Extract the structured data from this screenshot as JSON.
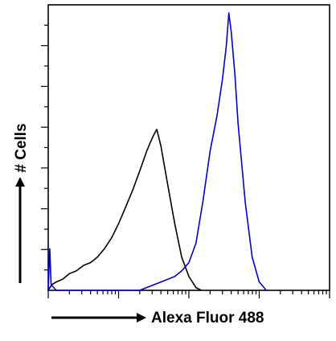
{
  "chart_data": {
    "type": "line",
    "title": "",
    "xlabel": "Alexa Fluor 488",
    "ylabel": "# Cells",
    "x_scale": "log",
    "xlim": [
      1,
      10000
    ],
    "ylim": [
      0,
      100
    ],
    "grid": false,
    "legend": "none",
    "series": [
      {
        "color": "#000000",
        "points": [
          [
            1.0,
            0
          ],
          [
            1.12,
            2
          ],
          [
            1.3,
            3
          ],
          [
            1.6,
            4
          ],
          [
            2.0,
            6
          ],
          [
            2.5,
            7
          ],
          [
            3.2,
            9
          ],
          [
            4.0,
            10
          ],
          [
            5.0,
            12
          ],
          [
            6.3,
            15
          ],
          [
            8.0,
            19
          ],
          [
            10,
            24
          ],
          [
            12.6,
            30
          ],
          [
            15.8,
            36
          ],
          [
            20,
            43
          ],
          [
            25,
            50
          ],
          [
            28,
            53
          ],
          [
            31.6,
            56
          ],
          [
            35,
            58
          ],
          [
            40,
            52
          ],
          [
            50,
            38
          ],
          [
            63,
            24
          ],
          [
            79,
            12
          ],
          [
            100,
            5
          ],
          [
            126,
            1
          ],
          [
            150,
            0
          ]
        ]
      },
      {
        "color": "#0000cc",
        "points": [
          [
            1.0,
            0
          ],
          [
            1.05,
            15
          ],
          [
            1.1,
            2
          ],
          [
            1.3,
            0
          ],
          [
            20,
            0
          ],
          [
            25,
            1
          ],
          [
            31.6,
            2
          ],
          [
            40,
            3
          ],
          [
            50,
            4
          ],
          [
            63,
            5
          ],
          [
            79,
            7
          ],
          [
            100,
            10
          ],
          [
            126,
            17
          ],
          [
            158,
            32
          ],
          [
            200,
            50
          ],
          [
            251,
            63
          ],
          [
            300,
            76
          ],
          [
            340,
            88
          ],
          [
            370,
            100
          ],
          [
            400,
            93
          ],
          [
            450,
            78
          ],
          [
            501,
            60
          ],
          [
            631,
            32
          ],
          [
            794,
            12
          ],
          [
            1000,
            3
          ],
          [
            1259,
            0
          ]
        ]
      }
    ]
  }
}
